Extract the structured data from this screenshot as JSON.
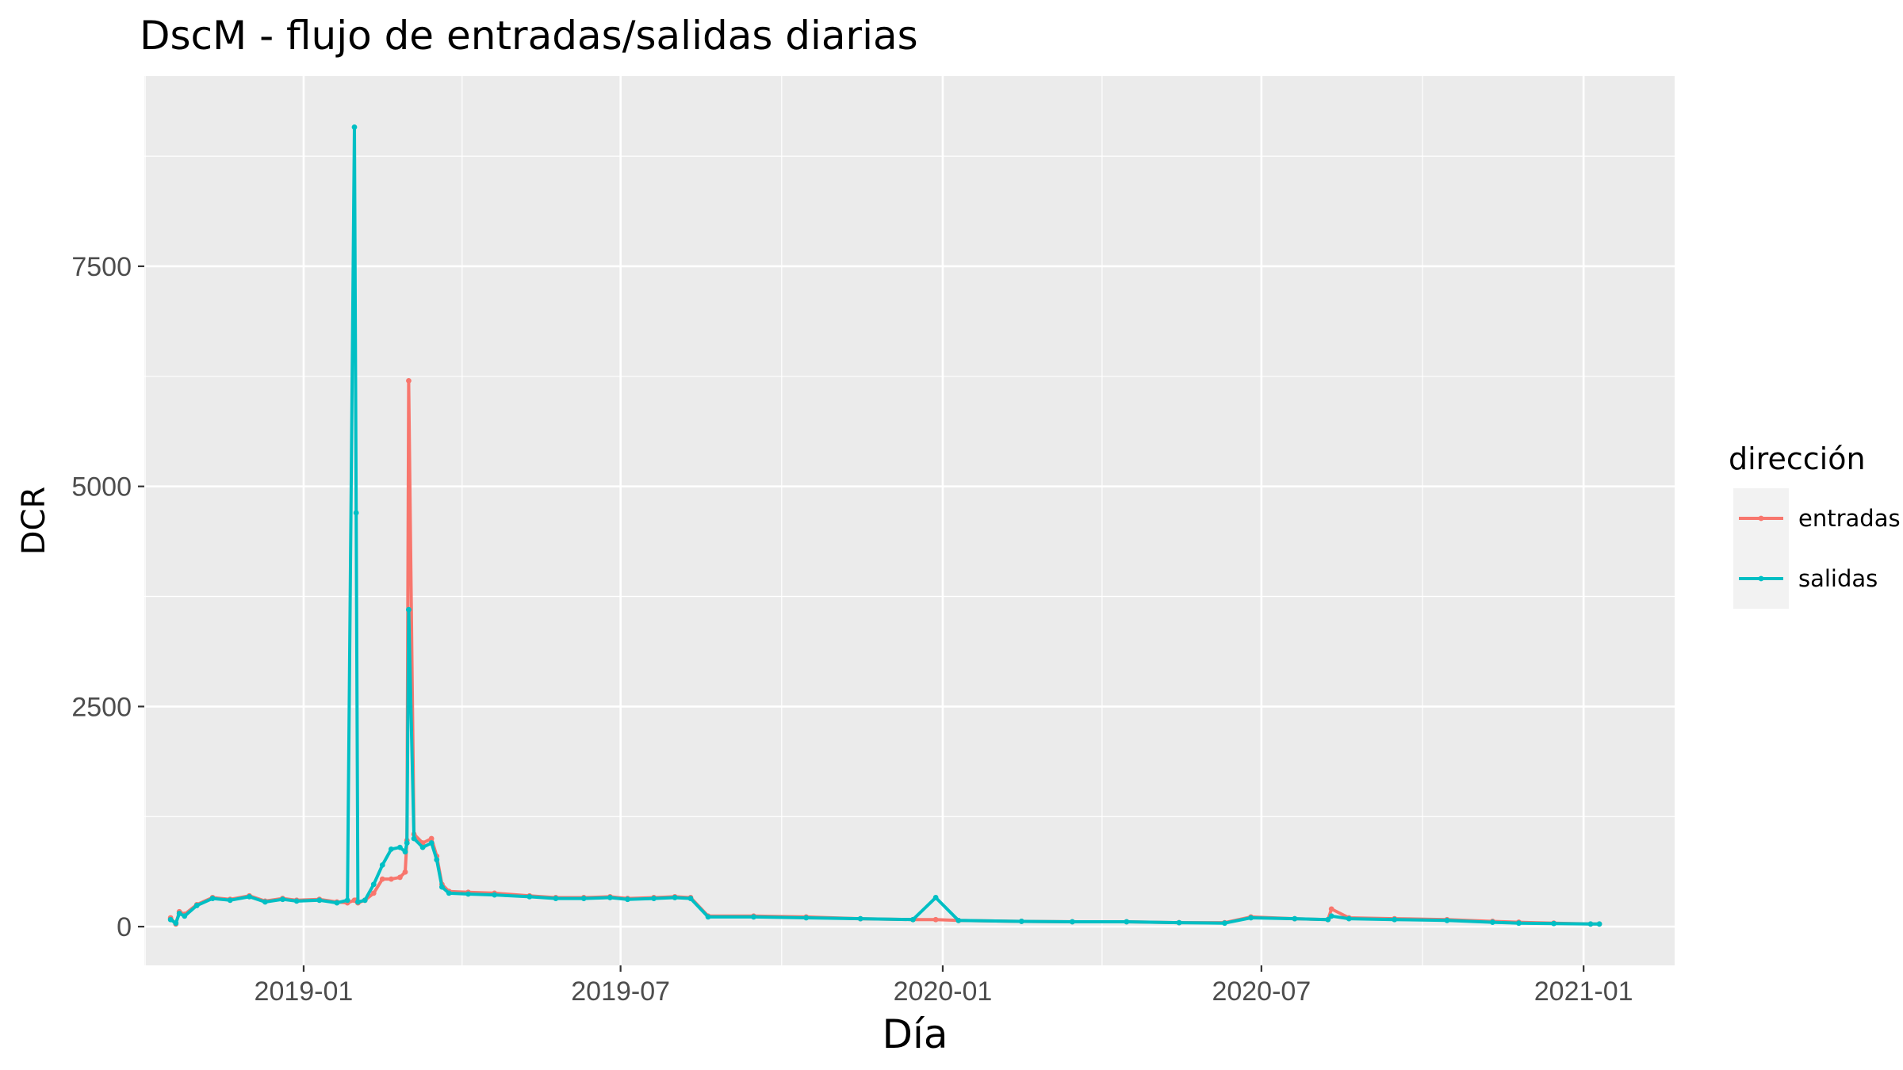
{
  "chart_data": {
    "type": "line",
    "title": "DscM - flujo de entradas/salidas diarias",
    "xlabel": "Día",
    "ylabel": "DCR",
    "x_axis_type": "date",
    "xlim": [
      "2018-10-02",
      "2021-02-22"
    ],
    "ylim": [
      -440,
      9660
    ],
    "x_ticks": [
      "2019-01-01",
      "2019-07-01",
      "2020-01-01",
      "2020-07-01",
      "2021-01-01"
    ],
    "x_tick_labels": [
      "2019-01",
      "2019-07",
      "2020-01",
      "2020-07",
      "2021-01"
    ],
    "y_ticks": [
      0,
      2500,
      5000,
      7500
    ],
    "y_tick_labels": [
      "0",
      "2500",
      "5000",
      "7500"
    ],
    "grid": true,
    "legend": {
      "title": "dirección",
      "position": "right"
    },
    "series": [
      {
        "name": "entradas",
        "color": "#F8766D",
        "x": [
          "2018-10-17",
          "2018-10-20",
          "2018-10-22",
          "2018-10-25",
          "2018-11-01",
          "2018-11-10",
          "2018-11-20",
          "2018-12-01",
          "2018-12-10",
          "2018-12-20",
          "2018-12-28",
          "2019-01-10",
          "2019-01-20",
          "2019-01-26",
          "2019-01-30",
          "2019-01-31",
          "2019-02-01",
          "2019-02-05",
          "2019-02-10",
          "2019-02-15",
          "2019-02-20",
          "2019-02-25",
          "2019-02-28",
          "2019-03-01",
          "2019-03-02",
          "2019-03-05",
          "2019-03-10",
          "2019-03-15",
          "2019-03-18",
          "2019-03-21",
          "2019-03-25",
          "2019-04-05",
          "2019-04-20",
          "2019-05-10",
          "2019-05-25",
          "2019-06-10",
          "2019-06-25",
          "2019-07-05",
          "2019-07-20",
          "2019-08-01",
          "2019-08-10",
          "2019-08-20",
          "2019-09-15",
          "2019-10-15",
          "2019-11-15",
          "2019-12-15",
          "2019-12-28",
          "2020-01-10",
          "2020-02-15",
          "2020-03-15",
          "2020-04-15",
          "2020-05-15",
          "2020-06-10",
          "2020-06-25",
          "2020-07-20",
          "2020-08-08",
          "2020-08-10",
          "2020-08-20",
          "2020-09-15",
          "2020-10-15",
          "2020-11-10",
          "2020-11-25",
          "2020-12-15",
          "2021-01-05",
          "2021-01-10"
        ],
        "values": [
          100,
          30,
          170,
          140,
          250,
          330,
          310,
          350,
          290,
          320,
          300,
          310,
          280,
          270,
          300,
          300,
          270,
          300,
          380,
          540,
          540,
          560,
          620,
          980,
          6200,
          1050,
          950,
          1000,
          800,
          480,
          400,
          390,
          380,
          350,
          330,
          330,
          340,
          320,
          330,
          340,
          330,
          120,
          120,
          110,
          90,
          80,
          80,
          70,
          60,
          55,
          55,
          45,
          45,
          110,
          90,
          80,
          200,
          100,
          90,
          80,
          60,
          50,
          40,
          30,
          30
        ]
      },
      {
        "name": "salidas",
        "color": "#00BFC4",
        "x": [
          "2018-10-17",
          "2018-10-20",
          "2018-10-22",
          "2018-10-25",
          "2018-11-01",
          "2018-11-10",
          "2018-11-20",
          "2018-12-01",
          "2018-12-10",
          "2018-12-20",
          "2018-12-28",
          "2019-01-10",
          "2019-01-20",
          "2019-01-26",
          "2019-01-30",
          "2019-01-31",
          "2019-02-01",
          "2019-02-05",
          "2019-02-10",
          "2019-02-15",
          "2019-02-20",
          "2019-02-25",
          "2019-02-28",
          "2019-03-01",
          "2019-03-02",
          "2019-03-05",
          "2019-03-10",
          "2019-03-15",
          "2019-03-18",
          "2019-03-21",
          "2019-03-25",
          "2019-04-05",
          "2019-04-20",
          "2019-05-10",
          "2019-05-25",
          "2019-06-10",
          "2019-06-25",
          "2019-07-05",
          "2019-07-20",
          "2019-08-01",
          "2019-08-10",
          "2019-08-20",
          "2019-09-15",
          "2019-10-15",
          "2019-11-15",
          "2019-12-15",
          "2019-12-28",
          "2020-01-10",
          "2020-02-15",
          "2020-03-15",
          "2020-04-15",
          "2020-05-15",
          "2020-06-10",
          "2020-06-25",
          "2020-07-20",
          "2020-08-08",
          "2020-08-10",
          "2020-08-20",
          "2020-09-15",
          "2020-10-15",
          "2020-11-10",
          "2020-11-25",
          "2020-12-15",
          "2021-01-05",
          "2021-01-10"
        ],
        "values": [
          80,
          40,
          150,
          120,
          240,
          320,
          300,
          340,
          280,
          310,
          290,
          300,
          270,
          300,
          9080,
          4700,
          280,
          300,
          480,
          700,
          880,
          900,
          850,
          950,
          3600,
          1000,
          900,
          950,
          760,
          450,
          380,
          370,
          360,
          340,
          320,
          320,
          330,
          310,
          320,
          330,
          320,
          110,
          110,
          100,
          90,
          80,
          330,
          70,
          60,
          55,
          55,
          45,
          40,
          100,
          90,
          80,
          120,
          90,
          80,
          70,
          50,
          40,
          35,
          30,
          30
        ]
      }
    ]
  }
}
